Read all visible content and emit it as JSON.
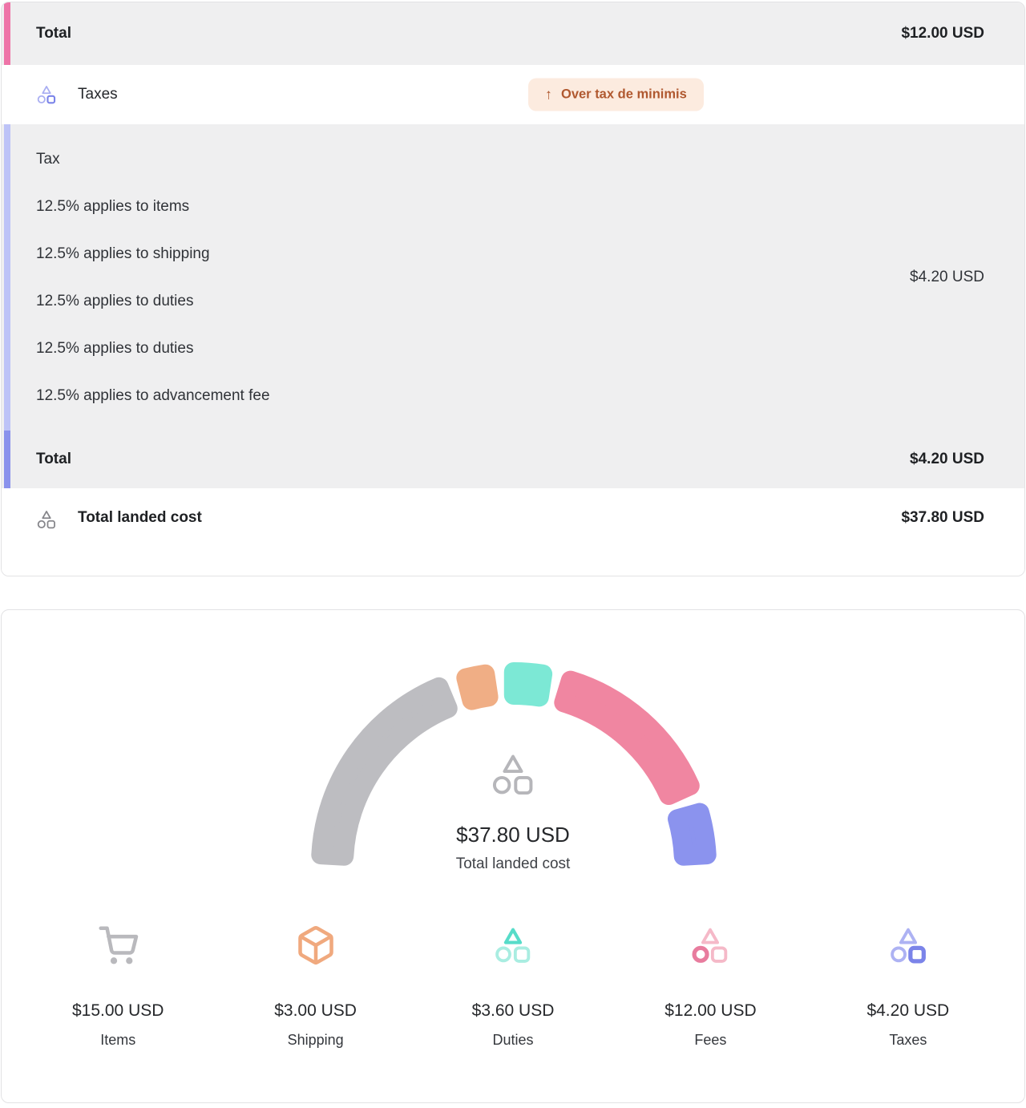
{
  "summary_card": {
    "fees_total_row": {
      "label": "Total",
      "amount": "$12.00 USD"
    },
    "taxes_row": {
      "label": "Taxes",
      "badge": "Over tax de minimis",
      "badge_arrow": "↑"
    },
    "tax_breakdown": {
      "header": "Tax",
      "lines": [
        "12.5% applies to items",
        "12.5% applies to shipping",
        "12.5% applies to duties",
        "12.5% applies to duties",
        "12.5% applies to advancement fee"
      ],
      "amount": "$4.20 USD"
    },
    "taxes_total_row": {
      "label": "Total",
      "amount": "$4.20 USD"
    },
    "landed_cost_row": {
      "label": "Total landed cost",
      "amount": "$37.80 USD"
    }
  },
  "chart_card": {
    "center": {
      "value": "$37.80 USD",
      "label": "Total landed cost"
    },
    "stats": [
      {
        "icon": "cart-icon",
        "value": "$15.00 USD",
        "label": "Items"
      },
      {
        "icon": "package-icon",
        "value": "$3.00 USD",
        "label": "Shipping"
      },
      {
        "icon": "duties-icon",
        "value": "$3.60 USD",
        "label": "Duties"
      },
      {
        "icon": "fees-icon",
        "value": "$12.00 USD",
        "label": "Fees"
      },
      {
        "icon": "taxes-icon",
        "value": "$4.20 USD",
        "label": "Taxes"
      }
    ]
  },
  "chart_data": {
    "type": "gauge",
    "title": "Total landed cost",
    "center_value": "$37.80 USD",
    "unit": "USD",
    "total": 37.8,
    "arc_degrees": 180,
    "legend_position": "bottom",
    "segments": [
      {
        "name": "Items",
        "value": 15.0,
        "color": "#bdbdc1"
      },
      {
        "name": "Shipping",
        "value": 3.0,
        "color": "#f0ae85"
      },
      {
        "name": "Duties",
        "value": 3.6,
        "color": "#7ce8d5"
      },
      {
        "name": "Fees",
        "value": 12.0,
        "color": "#f086a1"
      },
      {
        "name": "Taxes",
        "value": 4.2,
        "color": "#8b93ee"
      }
    ]
  },
  "colors": {
    "fees_accent": "#ee74a8",
    "taxes_accent_light": "#bdc3f7",
    "taxes_accent": "#8a92ec",
    "row_background": "#efeff0",
    "card_border": "#e2e2e4",
    "badge_background": "#fcebdf",
    "badge_text": "#b0582f"
  }
}
